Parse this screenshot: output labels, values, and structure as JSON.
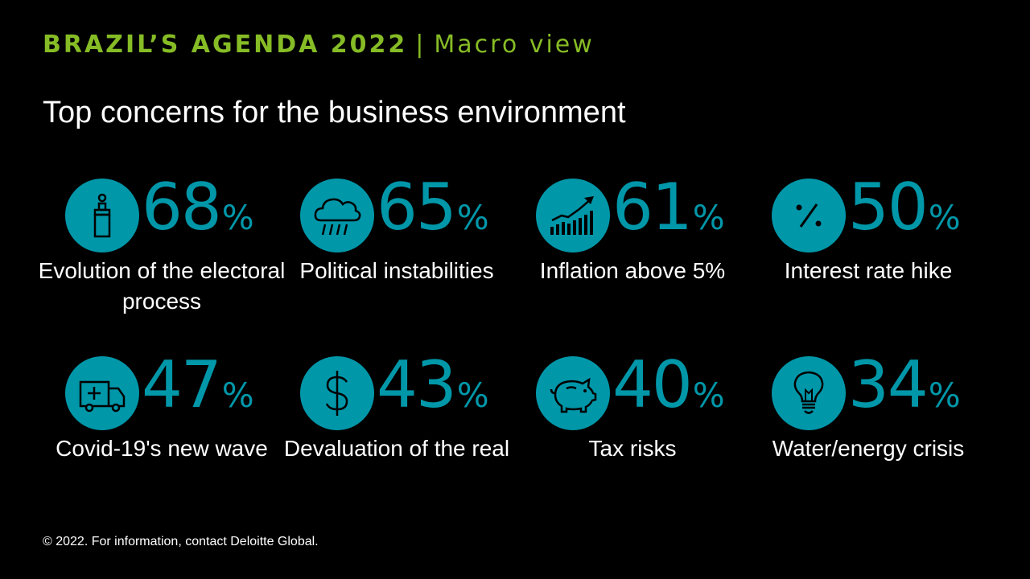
{
  "colors": {
    "header_green": "#86BC25",
    "teal": "#0097A9",
    "text": "#FFFFFF",
    "background": "#000000"
  },
  "header": {
    "title_bold": "BRAZIL’S AGENDA 2022",
    "separator": "|",
    "title_light": "Macro view"
  },
  "subtitle": "Top concerns for the business environment",
  "stats": [
    {
      "value": "68",
      "unit": "%",
      "label": "Evolution of the electoral process",
      "icon": "ballot-box-icon"
    },
    {
      "value": "65",
      "unit": "%",
      "label": "Political instabilities",
      "icon": "storm-cloud-icon"
    },
    {
      "value": "61",
      "unit": "%",
      "label": "Inflation above 5%",
      "icon": "rising-chart-icon"
    },
    {
      "value": "50",
      "unit": "%",
      "label": "Interest rate hike",
      "icon": "percent-icon"
    },
    {
      "value": "47",
      "unit": "%",
      "label": "Covid-19's new wave",
      "icon": "ambulance-icon"
    },
    {
      "value": "43",
      "unit": "%",
      "label": "Devaluation of the real",
      "icon": "dollar-icon"
    },
    {
      "value": "40",
      "unit": "%",
      "label": "Tax risks",
      "icon": "piggy-bank-icon"
    },
    {
      "value": "34",
      "unit": "%",
      "label": "Water/energy crisis",
      "icon": "lightbulb-icon"
    }
  ],
  "footer": "© 2022. For information, contact Deloitte Global."
}
